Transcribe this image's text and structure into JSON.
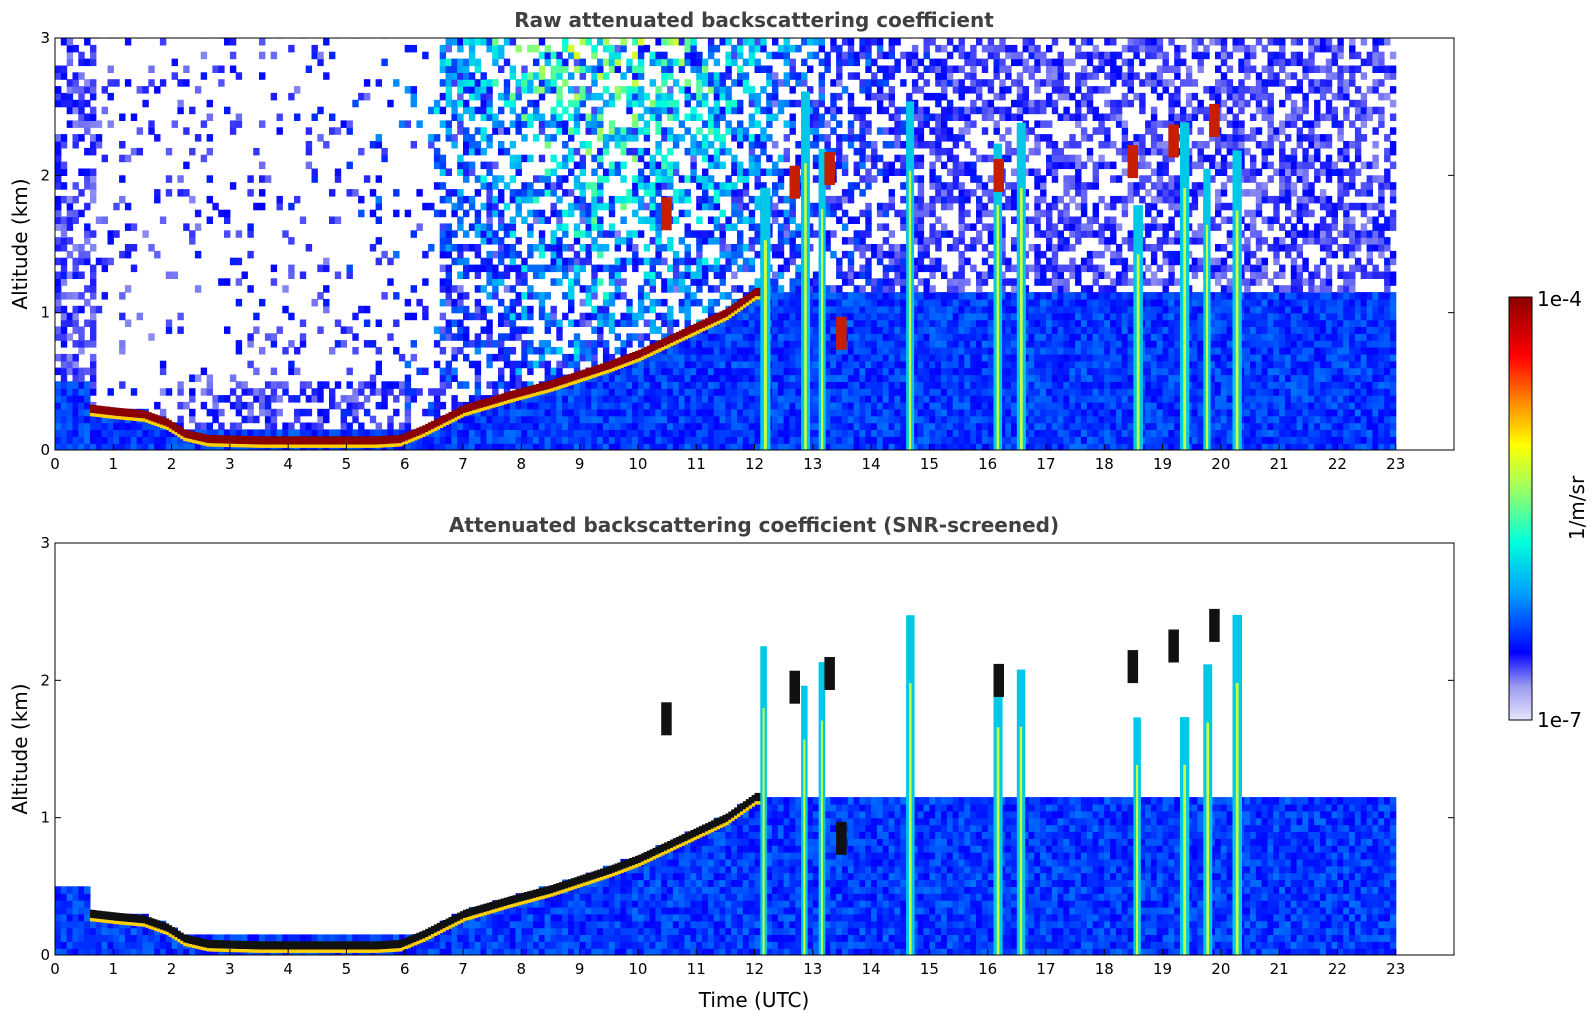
{
  "chart_data": [
    {
      "type": "heatmap",
      "title": "Raw attenuated backscattering coefficient",
      "xlabel": "",
      "ylabel": "Altitude (km)",
      "xlim": [
        0,
        24
      ],
      "ylim": [
        0,
        3
      ],
      "x_ticks": [
        "0",
        "1",
        "2",
        "3",
        "4",
        "5",
        "6",
        "7",
        "8",
        "9",
        "10",
        "11",
        "12",
        "13",
        "14",
        "15",
        "16",
        "17",
        "18",
        "19",
        "20",
        "21",
        "22",
        "23"
      ],
      "y_ticks": [
        "0",
        "1",
        "2",
        "3"
      ],
      "data_end_time": 23,
      "features": {
        "boundary_layer_top": {
          "time": [
            0.6,
            1.0,
            1.5,
            1.9,
            2.2,
            2.6,
            3.5,
            4.5,
            5.5,
            5.9,
            6.3,
            7.0,
            7.8,
            8.5,
            9.0,
            9.5,
            10.0,
            10.5,
            11.0,
            11.5,
            12.0
          ],
          "altitude_km": [
            0.3,
            0.28,
            0.26,
            0.2,
            0.12,
            0.08,
            0.07,
            0.07,
            0.07,
            0.08,
            0.15,
            0.3,
            0.4,
            0.48,
            0.55,
            0.62,
            0.7,
            0.8,
            0.9,
            1.0,
            1.15
          ]
        },
        "rain_shafts_utc": [
          12.1,
          12.8,
          13.1,
          14.6,
          16.1,
          16.5,
          18.5,
          19.3,
          19.7,
          20.2
        ],
        "cloud_patches": [
          {
            "time": 10.4,
            "altitude_km": 1.72
          },
          {
            "time": 12.6,
            "altitude_km": 1.95
          },
          {
            "time": 13.2,
            "altitude_km": 2.05
          },
          {
            "time": 16.1,
            "altitude_km": 2.0
          },
          {
            "time": 18.4,
            "altitude_km": 2.1
          },
          {
            "time": 19.1,
            "altitude_km": 2.25
          },
          {
            "time": 19.8,
            "altitude_km": 2.4
          },
          {
            "time": 13.4,
            "altitude_km": 0.85
          }
        ]
      }
    },
    {
      "type": "heatmap",
      "title": "Attenuated backscattering coefficient (SNR-screened)",
      "xlabel": "Time (UTC)",
      "ylabel": "Altitude (km)",
      "xlim": [
        0,
        24
      ],
      "ylim": [
        0,
        3
      ],
      "x_ticks": [
        "0",
        "1",
        "2",
        "3",
        "4",
        "5",
        "6",
        "7",
        "8",
        "9",
        "10",
        "11",
        "12",
        "13",
        "14",
        "15",
        "16",
        "17",
        "18",
        "19",
        "20",
        "21",
        "22",
        "23"
      ],
      "y_ticks": [
        "0",
        "1",
        "2",
        "3"
      ],
      "data_end_time": 23
    }
  ],
  "colorbar": {
    "label": "1/m/sr",
    "max_label": "1e-4",
    "min_label": "1e-7",
    "colormap": [
      "#e6e6fa",
      "#9a9af0",
      "#0000ff",
      "#00a0ff",
      "#00ffdc",
      "#a0ff60",
      "#ffff00",
      "#ff8c00",
      "#ff0000",
      "#8b0000"
    ]
  }
}
